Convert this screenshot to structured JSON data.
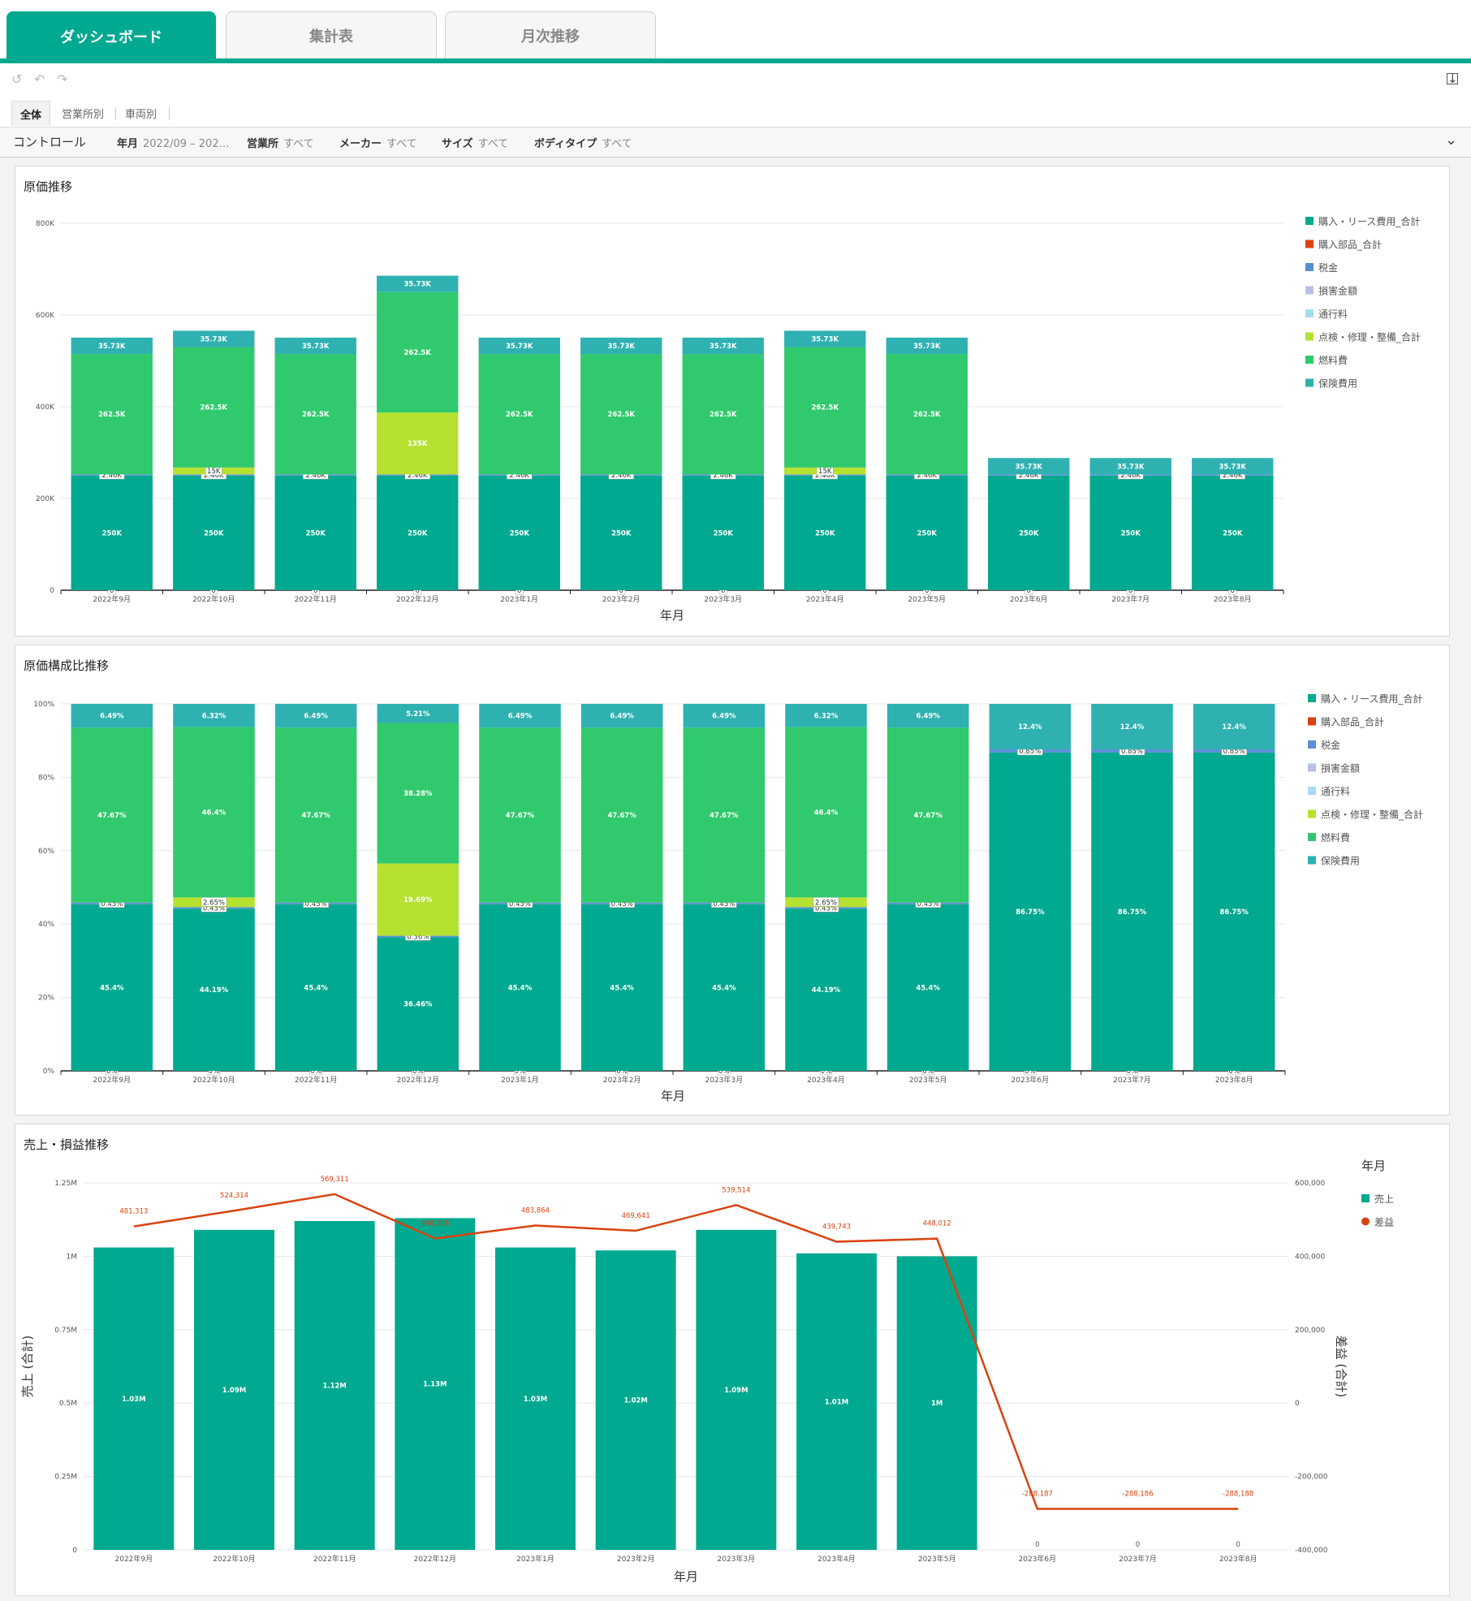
{
  "tabs": [
    {
      "label": "ダッシュボード",
      "active": true
    },
    {
      "label": "集計表",
      "active": false
    },
    {
      "label": "月次推移",
      "active": false
    }
  ],
  "subtabs": [
    {
      "label": "全体",
      "active": true
    },
    {
      "label": "営業所別",
      "active": false
    },
    {
      "label": "車両別",
      "active": false
    }
  ],
  "controls": {
    "title": "コントロール",
    "filters": [
      {
        "label": "年月",
        "value": "2022/09 – 202…"
      },
      {
        "label": "営業所",
        "value": "すべて"
      },
      {
        "label": "メーカー",
        "value": "すべて"
      },
      {
        "label": "サイズ",
        "value": "すべて"
      },
      {
        "label": "ボディタイプ",
        "value": "すべて"
      }
    ]
  },
  "legend_items": [
    {
      "name": "購入・リース費用_合計",
      "color": "#00a98f"
    },
    {
      "name": "購入部品_合計",
      "color": "#d9430f"
    },
    {
      "name": "税金",
      "color": "#5b8fd8"
    },
    {
      "name": "損害金額",
      "color": "#b7c0e3"
    },
    {
      "name": "通行料",
      "color": "#a6dcef"
    },
    {
      "name": "点検・修理・整備_合計",
      "color": "#b5e230"
    },
    {
      "name": "燃料費",
      "color": "#31c96e"
    },
    {
      "name": "保険費用",
      "color": "#2fb1b1"
    }
  ],
  "chart_data": [
    {
      "type": "bar",
      "stacked": true,
      "title": "原価推移",
      "xlabel": "年月",
      "ylim": [
        0,
        800000
      ],
      "yticks": [
        "0",
        "200K",
        "400K",
        "600K",
        "800K"
      ],
      "categories": [
        "2022年9月",
        "2022年10月",
        "2022年11月",
        "2022年12月",
        "2023年1月",
        "2023年2月",
        "2023年3月",
        "2023年4月",
        "2023年5月",
        "2023年6月",
        "2023年7月",
        "2023年8月"
      ],
      "series": [
        {
          "name": "購入部品_合計",
          "values": [
            0,
            0,
            0,
            0,
            0,
            0,
            0,
            0,
            0,
            0,
            0,
            0
          ],
          "labels": [
            "0",
            "0",
            "0",
            "0",
            "0",
            "0",
            "0",
            "0",
            "0",
            "0",
            "0",
            "0"
          ]
        },
        {
          "name": "購入・リース費用_合計",
          "values": [
            250000,
            250000,
            250000,
            250000,
            250000,
            250000,
            250000,
            250000,
            250000,
            250000,
            250000,
            250000
          ],
          "labels": [
            "250K",
            "250K",
            "250K",
            "250K",
            "250K",
            "250K",
            "250K",
            "250K",
            "250K",
            "250K",
            "250K",
            "250K"
          ]
        },
        {
          "name": "税金",
          "values": [
            2460,
            2460,
            2460,
            2460,
            2460,
            2460,
            2460,
            2460,
            2460,
            2460,
            2460,
            2460
          ],
          "labels": [
            "2.46K",
            "2.46K",
            "2.46K",
            "2.46K",
            "2.46K",
            "2.46K",
            "2.46K",
            "2.46K",
            "2.46K",
            "2.46K",
            "2.46K",
            "2.46K"
          ]
        },
        {
          "name": "点検・修理・整備_合計",
          "values": [
            0,
            15000,
            0,
            135000,
            0,
            0,
            0,
            15000,
            0,
            0,
            0,
            0
          ],
          "labels": [
            "",
            "15K",
            "",
            "135K",
            "",
            "",
            "",
            "15K",
            "",
            "",
            "",
            ""
          ]
        },
        {
          "name": "燃料費",
          "values": [
            262500,
            262500,
            262500,
            262500,
            262500,
            262500,
            262500,
            262500,
            262500,
            0,
            0,
            0
          ],
          "labels": [
            "262.5K",
            "262.5K",
            "262.5K",
            "262.5K",
            "262.5K",
            "262.5K",
            "262.5K",
            "262.5K",
            "262.5K",
            "",
            "",
            ""
          ]
        },
        {
          "name": "保険費用",
          "values": [
            35730,
            35730,
            35730,
            35730,
            35730,
            35730,
            35730,
            35730,
            35730,
            35730,
            35730,
            35730
          ],
          "labels": [
            "35.73K",
            "35.73K",
            "35.73K",
            "35.73K",
            "35.73K",
            "35.73K",
            "35.73K",
            "35.73K",
            "35.73K",
            "35.73K",
            "35.73K",
            "35.73K"
          ]
        }
      ]
    },
    {
      "type": "bar",
      "stacked": true,
      "title": "原価構成比推移",
      "xlabel": "年月",
      "ylim": [
        0,
        100
      ],
      "yticks": [
        "0%",
        "20%",
        "40%",
        "60%",
        "80%",
        "100%"
      ],
      "categories": [
        "2022年9月",
        "2022年10月",
        "2022年11月",
        "2022年12月",
        "2023年1月",
        "2023年2月",
        "2023年3月",
        "2023年4月",
        "2023年5月",
        "2023年6月",
        "2023年7月",
        "2023年8月"
      ],
      "series": [
        {
          "name": "購入部品_合計",
          "values": [
            0,
            0,
            0,
            0,
            0,
            0,
            0,
            0,
            0,
            0,
            0,
            0
          ],
          "labels": [
            "0%",
            "0%",
            "0%",
            "0%",
            "0%",
            "0%",
            "0%",
            "0%",
            "0%",
            "0%",
            "0%",
            "0%"
          ]
        },
        {
          "name": "購入・リース費用_合計",
          "values": [
            45.4,
            44.19,
            45.4,
            36.46,
            45.4,
            45.4,
            45.4,
            44.19,
            45.4,
            86.75,
            86.75,
            86.75
          ],
          "labels": [
            "45.4%",
            "44.19%",
            "45.4%",
            "36.46%",
            "45.4%",
            "45.4%",
            "45.4%",
            "44.19%",
            "45.4%",
            "86.75%",
            "86.75%",
            "86.75%"
          ]
        },
        {
          "name": "税金",
          "values": [
            0.45,
            0.43,
            0.45,
            0.36,
            0.45,
            0.45,
            0.45,
            0.43,
            0.45,
            0.85,
            0.85,
            0.85
          ],
          "labels": [
            "0.45%",
            "0.43%",
            "0.45%",
            "0.36%",
            "0.45%",
            "0.45%",
            "0.45%",
            "0.43%",
            "0.45%",
            "0.85%",
            "0.85%",
            "0.85%"
          ]
        },
        {
          "name": "点検・修理・整備_合計",
          "values": [
            0,
            2.65,
            0,
            19.69,
            0,
            0,
            0,
            2.65,
            0,
            0,
            0,
            0
          ],
          "labels": [
            "",
            "2.65%",
            "",
            "19.69%",
            "",
            "",
            "",
            "2.65%",
            "",
            "",
            "",
            ""
          ]
        },
        {
          "name": "燃料費",
          "values": [
            47.67,
            46.4,
            47.67,
            38.28,
            47.67,
            47.67,
            47.67,
            46.4,
            47.67,
            0,
            0,
            0
          ],
          "labels": [
            "47.67%",
            "46.4%",
            "47.67%",
            "38.28%",
            "47.67%",
            "47.67%",
            "47.67%",
            "46.4%",
            "47.67%",
            "",
            "",
            ""
          ]
        },
        {
          "name": "保険費用",
          "values": [
            6.49,
            6.32,
            6.49,
            5.21,
            6.49,
            6.49,
            6.49,
            6.32,
            6.49,
            12.4,
            12.4,
            12.4
          ],
          "labels": [
            "6.49%",
            "6.32%",
            "6.49%",
            "5.21%",
            "6.49%",
            "6.49%",
            "6.49%",
            "6.32%",
            "6.49%",
            "12.4%",
            "12.4%",
            "12.4%"
          ]
        }
      ]
    },
    {
      "type": "bar+line",
      "title": "売上・損益推移",
      "xlabel": "年月",
      "ylabel": "売上 (合計)",
      "y2label": "差益 (合計)",
      "ylim": [
        0,
        1250000
      ],
      "y2lim": [
        -400000,
        600000
      ],
      "yticks": [
        "0",
        "0.25M",
        "0.5M",
        "0.75M",
        "1M",
        "1.25M"
      ],
      "y2ticks": [
        "-400,000",
        "-200,000",
        "0",
        "200,000",
        "400,000",
        "600,000"
      ],
      "legend_title": "年月",
      "categories": [
        "2022年9月",
        "2022年10月",
        "2022年11月",
        "2022年12月",
        "2023年1月",
        "2023年2月",
        "2023年3月",
        "2023年4月",
        "2023年5月",
        "2023年6月",
        "2023年7月",
        "2023年8月"
      ],
      "series": [
        {
          "name": "売上",
          "type": "bar",
          "color": "#00a98f",
          "values": [
            1030000,
            1090000,
            1120000,
            1130000,
            1030000,
            1020000,
            1090000,
            1010000,
            1000000,
            0,
            0,
            0
          ],
          "labels": [
            "1.03M",
            "1.09M",
            "1.12M",
            "1.13M",
            "1.03M",
            "1.02M",
            "1.09M",
            "1.01M",
            "1M",
            "0",
            "0",
            "0"
          ]
        },
        {
          "name": "差益",
          "type": "line",
          "color": "#d9430f",
          "values": [
            481313,
            524314,
            569311,
            448508,
            483864,
            469641,
            539514,
            439743,
            448012,
            -288187,
            -288186,
            -288188
          ],
          "labels": [
            "481,313",
            "524,314",
            "569,311",
            "448,508",
            "483,864",
            "469,641",
            "539,514",
            "439,743",
            "448,012",
            "-288,187",
            "-288,186",
            "-288,188"
          ]
        }
      ]
    }
  ]
}
